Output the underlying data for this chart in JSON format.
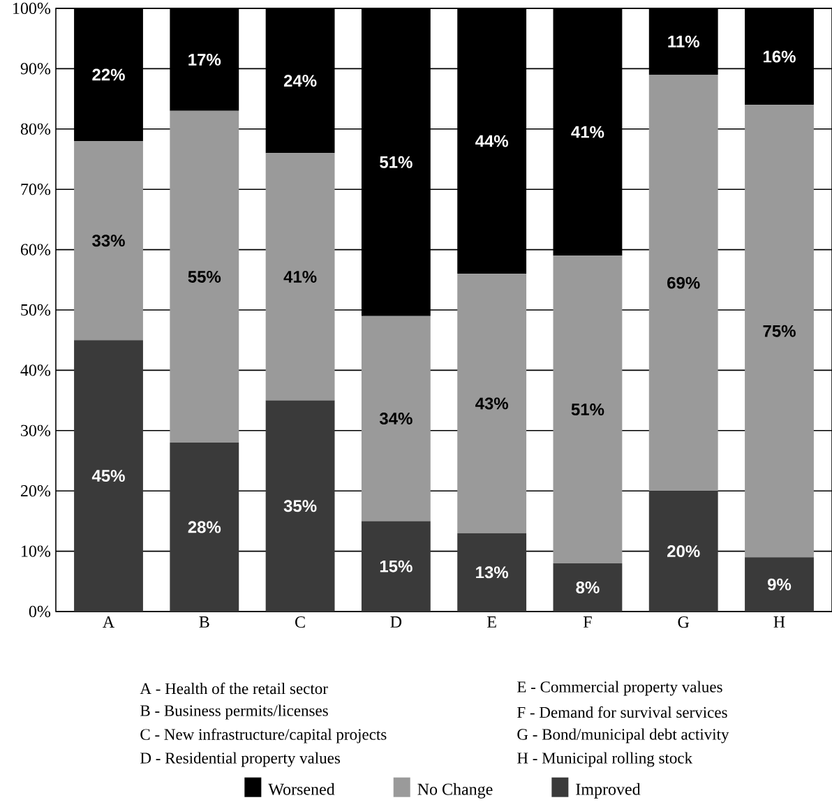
{
  "chart_data": {
    "type": "bar",
    "stacked": true,
    "categories": [
      "A",
      "B",
      "C",
      "D",
      "E",
      "F",
      "G",
      "H"
    ],
    "series": [
      {
        "name": "Improved",
        "color": "#3a3a3a",
        "values": [
          45,
          28,
          35,
          15,
          13,
          8,
          20,
          9
        ],
        "value_labels": [
          "45%",
          "28%",
          "35%",
          "15%",
          "13%",
          "8%",
          "20%",
          "9%"
        ]
      },
      {
        "name": "No Change",
        "color": "#9a9a9a",
        "values": [
          33,
          55,
          41,
          34,
          43,
          51,
          69,
          75
        ],
        "value_labels": [
          "33%",
          "55%",
          "41%",
          "34%",
          "43%",
          "51%",
          "69%",
          "75%"
        ]
      },
      {
        "name": "Worsened",
        "color": "#000000",
        "values": [
          22,
          17,
          24,
          51,
          44,
          41,
          11,
          16
        ],
        "value_labels": [
          "22%",
          "17%",
          "24%",
          "51%",
          "44%",
          "41%",
          "11%",
          "16%"
        ]
      }
    ],
    "ylim": [
      0,
      100
    ],
    "yticks": [
      {
        "value": 0,
        "label": "0%"
      },
      {
        "value": 10,
        "label": "10%"
      },
      {
        "value": 20,
        "label": "20%"
      },
      {
        "value": 30,
        "label": "30%"
      },
      {
        "value": 40,
        "label": "40%"
      },
      {
        "value": 50,
        "label": "50%"
      },
      {
        "value": 60,
        "label": "60%"
      },
      {
        "value": 70,
        "label": "70%"
      },
      {
        "value": 80,
        "label": "80%"
      },
      {
        "value": 90,
        "label": "90%"
      },
      {
        "value": 100,
        "label": "100%"
      }
    ],
    "grid": "y",
    "legend": "bottom",
    "annotations": [
      "A - Health of the retail sector",
      "B - Business permits/licenses",
      "C - New infrastructure/capital projects",
      "D - Residential property values",
      "E - Commercial property values",
      "F - Demand for survival services",
      "G - Bond/municipal debt activity",
      "H - Municipal rolling stock"
    ]
  }
}
